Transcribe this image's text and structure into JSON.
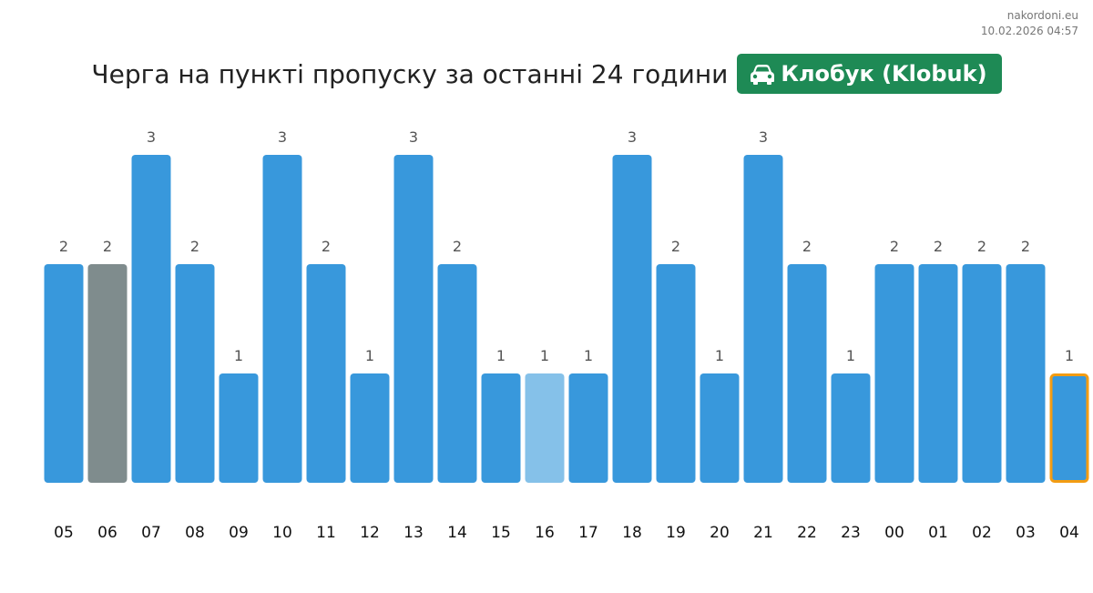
{
  "site": "nakordoni.eu",
  "timestamp": "10.02.2026 04:57",
  "title": "Черга на пункті пропуску за останні 24 години",
  "checkpoint": {
    "name": "Клобук (Klobuk)",
    "icon": "car-icon",
    "color": "#1e8a55"
  },
  "colors": {
    "bar": "#3898dc",
    "bar_gray": "#7f8c8d",
    "bar_light": "#85c1e9",
    "current_outline": "#f39c12"
  },
  "chart_data": {
    "type": "bar",
    "categories": [
      "05",
      "06",
      "07",
      "08",
      "09",
      "10",
      "11",
      "12",
      "13",
      "14",
      "15",
      "16",
      "17",
      "18",
      "19",
      "20",
      "21",
      "22",
      "23",
      "00",
      "01",
      "02",
      "03",
      "04"
    ],
    "values": [
      2,
      2,
      3,
      2,
      1,
      3,
      2,
      1,
      3,
      2,
      1,
      1,
      1,
      3,
      2,
      1,
      3,
      2,
      1,
      2,
      2,
      2,
      2,
      1
    ],
    "ylim": [
      0,
      3
    ],
    "title": "Черга на пункті пропуску за останні 24 години",
    "xlabel": "",
    "ylabel": "",
    "grid": false,
    "highlighted": {
      "gray": "06",
      "light": "16",
      "current": "04"
    }
  }
}
